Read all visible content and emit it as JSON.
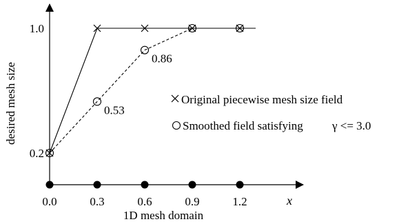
{
  "chart_data": {
    "type": "line",
    "title": "",
    "xlabel": "1D mesh domain",
    "x_axis_symbol": "x",
    "ylabel": "desired mesh size",
    "x": [
      0.0,
      0.3,
      0.6,
      0.9,
      1.2
    ],
    "x_tick_labels": [
      "0.0",
      "0.3",
      "0.6",
      "0.9",
      "1.2"
    ],
    "y_tick_labels": [
      "0.2",
      "1.0"
    ],
    "xlim": [
      0.0,
      1.35
    ],
    "ylim": [
      0.0,
      1.2
    ],
    "grid": false,
    "legend_placement": "right",
    "series": [
      {
        "name": "Original piecewise mesh size field",
        "marker": "x",
        "line_style": "solid",
        "x": [
          0.0,
          0.3,
          0.6,
          0.9,
          1.2
        ],
        "values": [
          0.2,
          1.0,
          1.0,
          1.0,
          1.0
        ],
        "line_extends_to": 1.3
      },
      {
        "name": "Smoothed field satisfying",
        "name_suffix": "γ <= 3.0",
        "marker": "circle",
        "line_style": "dashed",
        "x": [
          0.0,
          0.3,
          0.6,
          0.9,
          1.2
        ],
        "values": [
          0.2,
          0.53,
          0.86,
          1.0,
          1.0
        ]
      }
    ],
    "data_labels": [
      {
        "x": 0.3,
        "y": 0.53,
        "text": "0.53"
      },
      {
        "x": 0.6,
        "y": 0.86,
        "text": "0.86"
      }
    ],
    "mesh_nodes": [
      0.0,
      0.3,
      0.6,
      0.9,
      1.2
    ]
  }
}
